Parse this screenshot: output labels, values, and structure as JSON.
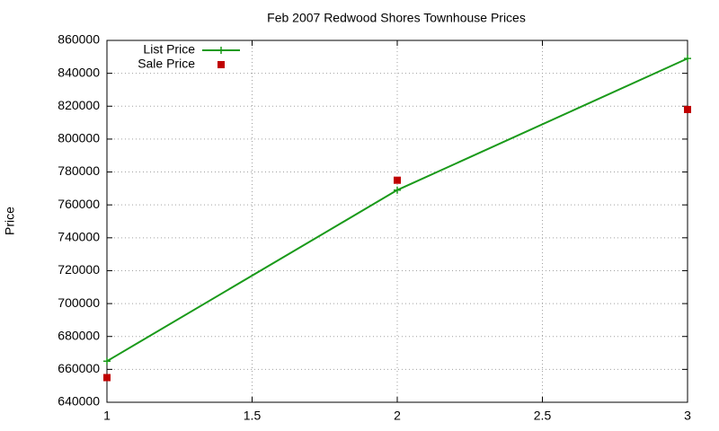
{
  "chart_data": {
    "type": "line",
    "title": "Feb 2007 Redwood Shores Townhouse Prices",
    "ylabel": "Price",
    "x": [
      1,
      2,
      3
    ],
    "series": [
      {
        "name": "List Price",
        "color": "#1a9a1a",
        "style": "linespoints",
        "values": [
          665000,
          769000,
          849000
        ]
      },
      {
        "name": "Sale Price",
        "color": "#c00000",
        "style": "points",
        "values": [
          655000,
          775000,
          818000
        ]
      }
    ],
    "xlim": [
      1,
      3
    ],
    "xticks": [
      1,
      1.5,
      2,
      2.5,
      3
    ],
    "ylim": [
      640000,
      860000
    ],
    "yticks": [
      640000,
      660000,
      680000,
      700000,
      720000,
      740000,
      760000,
      780000,
      800000,
      820000,
      840000,
      860000
    ],
    "grid": true,
    "legend": "top-left"
  }
}
